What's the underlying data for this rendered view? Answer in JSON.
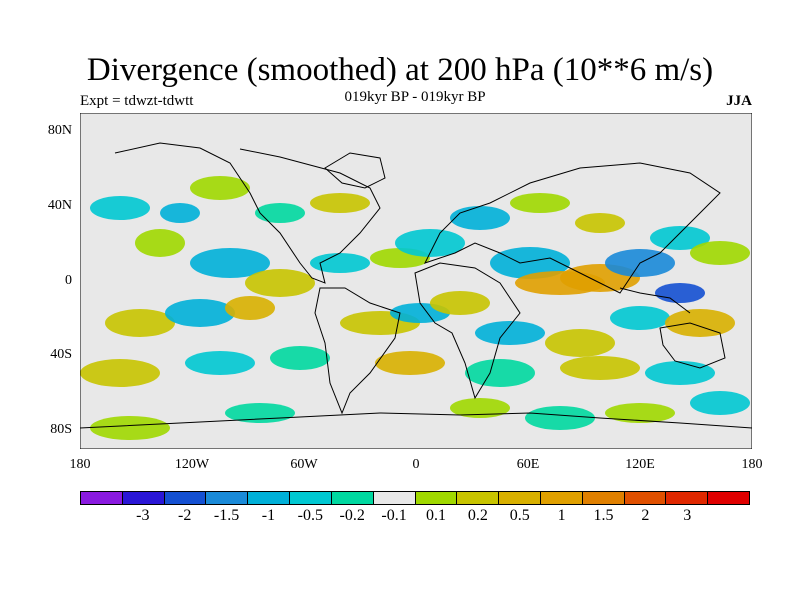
{
  "header": {
    "title": "Divergence (smoothed) at 200 hPa (10**6 m/s)",
    "subtitle": "019kyr BP - 019kyr BP",
    "experiment": "Expt = tdwzt-tdwtt",
    "season": "JJA"
  },
  "map": {
    "background_color": "#e8e8e8",
    "lat_ticks": [
      "80N",
      "40N",
      "0",
      "40S",
      "80S"
    ],
    "lon_ticks": [
      "180",
      "120W",
      "60W",
      "0",
      "60E",
      "120E",
      "180"
    ]
  },
  "colorbar": {
    "colors": [
      "#8a1ae0",
      "#2a16d6",
      "#1450d2",
      "#1a8ad8",
      "#00b0d8",
      "#00c8d2",
      "#00d8a0",
      "#e8e8e8",
      "#a0d800",
      "#c8c400",
      "#d8b000",
      "#e0a000",
      "#e08000",
      "#e05000",
      "#e02800",
      "#e00000"
    ],
    "labels": [
      "-3",
      "-2",
      "-1.5",
      "-1",
      "-0.5",
      "-0.2",
      "-0.1",
      "0.1",
      "0.2",
      "0.5",
      "1",
      "1.5",
      "2",
      "3"
    ]
  }
}
